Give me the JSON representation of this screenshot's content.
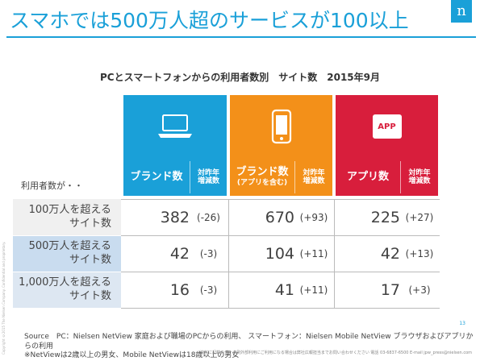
{
  "slide": {
    "title": "スマホでは500万人超のサービスが100以上",
    "logo_letter": "n",
    "page_number": "13",
    "side_note": "Copyright ©2015 The Nielsen Company. Confidential and proprietary.",
    "bottom_note": "資料に記載のデータ例外部利用にご利用になる場合は弊社広報担当までお問い合わせください 電話 03-6837-6500 E-mail jpw_press@nielsen.com"
  },
  "table": {
    "caption": "PCとスマートフォンからの利用者数別　サイト数　2015年9月",
    "users_label": "利用者数が・・",
    "groups": [
      {
        "icon": "laptop-icon",
        "main_label": "ブランド数",
        "main_sub": "",
        "yoy_line1": "対昨年",
        "yoy_line2": "増減数",
        "color": "#1aa0d8"
      },
      {
        "icon": "smartphone-icon",
        "main_label": "ブランド数",
        "main_sub": "(アプリを含む)",
        "yoy_line1": "対昨年",
        "yoy_line2": "増減数",
        "color": "#f39019"
      },
      {
        "icon": "app-icon",
        "icon_text": "APP",
        "main_label": "アプリ数",
        "main_sub": "",
        "yoy_line1": "対昨年",
        "yoy_line2": "増減数",
        "color": "#d81e3c"
      }
    ],
    "rows": [
      {
        "line1": "100万人を超える",
        "line2": "サイト数",
        "pc": "382",
        "pc_yoy": "(-26)",
        "sp": "670",
        "sp_yoy": "(+93)",
        "app": "225",
        "app_yoy": "(+27)"
      },
      {
        "line1": "500万人を超える",
        "line2": "サイト数",
        "pc": "42",
        "pc_yoy": "(-3)",
        "sp": "104",
        "sp_yoy": "(+11)",
        "app": "42",
        "app_yoy": "(+13)"
      },
      {
        "line1": "1,000万人を超える",
        "line2": "サイト数",
        "pc": "16",
        "pc_yoy": "(-3)",
        "sp": "41",
        "sp_yoy": "(+11)",
        "app": "17",
        "app_yoy": "(+3)"
      }
    ]
  },
  "footnotes": {
    "line1": "Source　PC：Nielsen NetView 家庭および職場のPCからの利用、 スマートフォン：Nielsen Mobile NetView ブラウザおよびアプリからの利用",
    "line2": "※NetViewは2歳以上の男女、Mobile NetViewは18歳以上の男女"
  }
}
